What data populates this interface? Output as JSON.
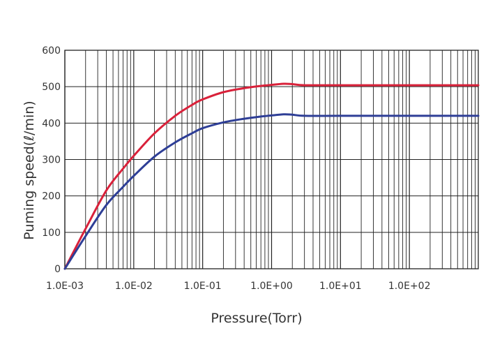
{
  "chart_data": {
    "type": "line",
    "title": "",
    "xlabel": "Pressure(Torr)",
    "ylabel": "Puming speed(ℓ/min)",
    "x_scale": "log",
    "xlim": [
      0.001,
      1000
    ],
    "ylim": [
      0,
      600
    ],
    "x_ticks": [
      0.001,
      0.01,
      0.1,
      1,
      10,
      100
    ],
    "x_tick_labels": [
      "1.0E-03",
      "1.0E-02",
      "1.0E-01",
      "1.0E+00",
      "1.0E+01",
      "1.0E+02"
    ],
    "y_ticks": [
      0,
      100,
      200,
      300,
      400,
      500,
      600
    ],
    "y_tick_labels": [
      "0",
      "100",
      "200",
      "300",
      "400",
      "500",
      "600"
    ],
    "grid": true,
    "series": [
      {
        "color": "#d9213a",
        "x": [
          0.001,
          0.002,
          0.004,
          0.007,
          0.01,
          0.02,
          0.04,
          0.07,
          0.1,
          0.2,
          0.4,
          0.7,
          1.0,
          1.5,
          2.0,
          3.0,
          10,
          100,
          1000
        ],
        "y": [
          0,
          110,
          215,
          275,
          310,
          372,
          420,
          450,
          465,
          485,
          496,
          502,
          505,
          508,
          507,
          504,
          504,
          504,
          504
        ]
      },
      {
        "color": "#2e3e96",
        "x": [
          0.001,
          0.002,
          0.004,
          0.007,
          0.01,
          0.02,
          0.04,
          0.07,
          0.1,
          0.2,
          0.4,
          0.7,
          1.0,
          1.5,
          2.0,
          3.0,
          10,
          100,
          1000
        ],
        "y": [
          0,
          90,
          175,
          225,
          255,
          308,
          347,
          372,
          386,
          402,
          412,
          418,
          421,
          424,
          423,
          420,
          420,
          420,
          420
        ]
      }
    ]
  }
}
